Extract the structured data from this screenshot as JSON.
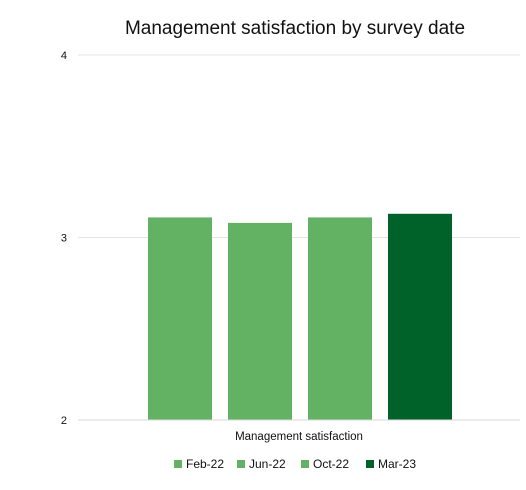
{
  "chart_data": {
    "type": "bar",
    "title": "Management satisfaction by survey date",
    "xlabel": "",
    "ylabel": "",
    "category_label": "Management satisfaction",
    "ylim": [
      2,
      4
    ],
    "yticks": [
      2,
      3,
      4
    ],
    "grid": true,
    "legend_position": "bottom",
    "series": [
      {
        "name": "Feb-22",
        "value": 3.11,
        "color": "#63b163"
      },
      {
        "name": "Jun-22",
        "value": 3.08,
        "color": "#63b163"
      },
      {
        "name": "Oct-22",
        "value": 3.11,
        "color": "#63b163"
      },
      {
        "name": "Mar-23",
        "value": 3.13,
        "color": "#006228"
      }
    ]
  }
}
